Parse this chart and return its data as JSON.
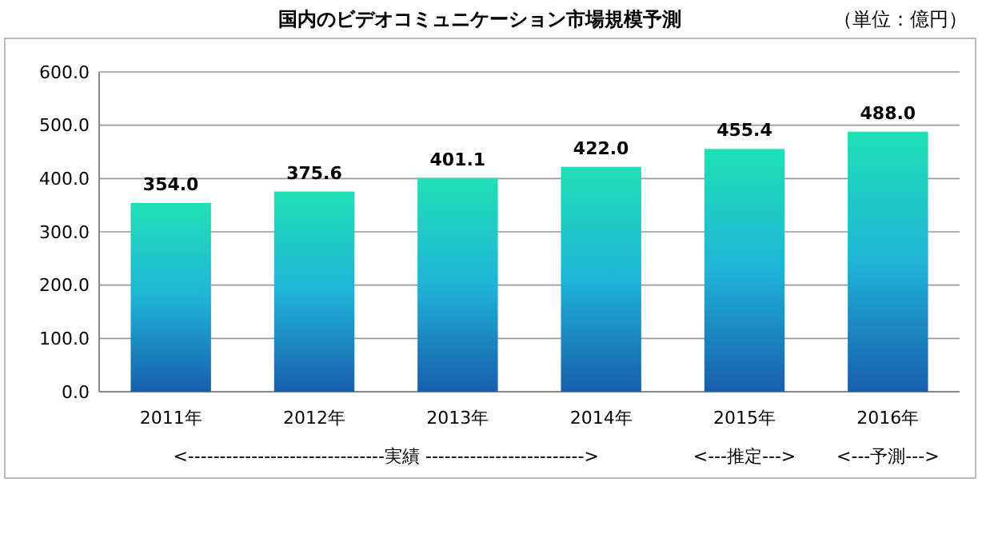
{
  "chart_data": {
    "type": "bar",
    "title": "国内のビデオコミュニケーション市場規模予測",
    "categories": [
      "2011年",
      "2012年",
      "2013年",
      "2014年",
      "2015年",
      "2016年"
    ],
    "values": [
      354.0,
      375.6,
      401.1,
      422.0,
      455.4,
      488.0
    ],
    "value_labels": [
      "354.0",
      "375.6",
      "401.1",
      "422.0",
      "455.4",
      "488.0"
    ],
    "color": "#1eb4d8",
    "ylim": [
      0,
      600
    ],
    "yticks": [
      {
        "value": 0,
        "label": "0.0"
      },
      {
        "value": 100,
        "label": "100.0"
      },
      {
        "value": 200,
        "label": "200.0"
      },
      {
        "value": 300,
        "label": "300.0"
      },
      {
        "value": 400,
        "label": "400.0"
      },
      {
        "value": 500,
        "label": "500.0"
      },
      {
        "value": 600,
        "label": "600.0"
      }
    ],
    "grid": "y",
    "annotations": [
      "（単位：億円）",
      "<-------------------------------実績 ------------------------->",
      "<---推定--->",
      "<---予測--->"
    ]
  }
}
